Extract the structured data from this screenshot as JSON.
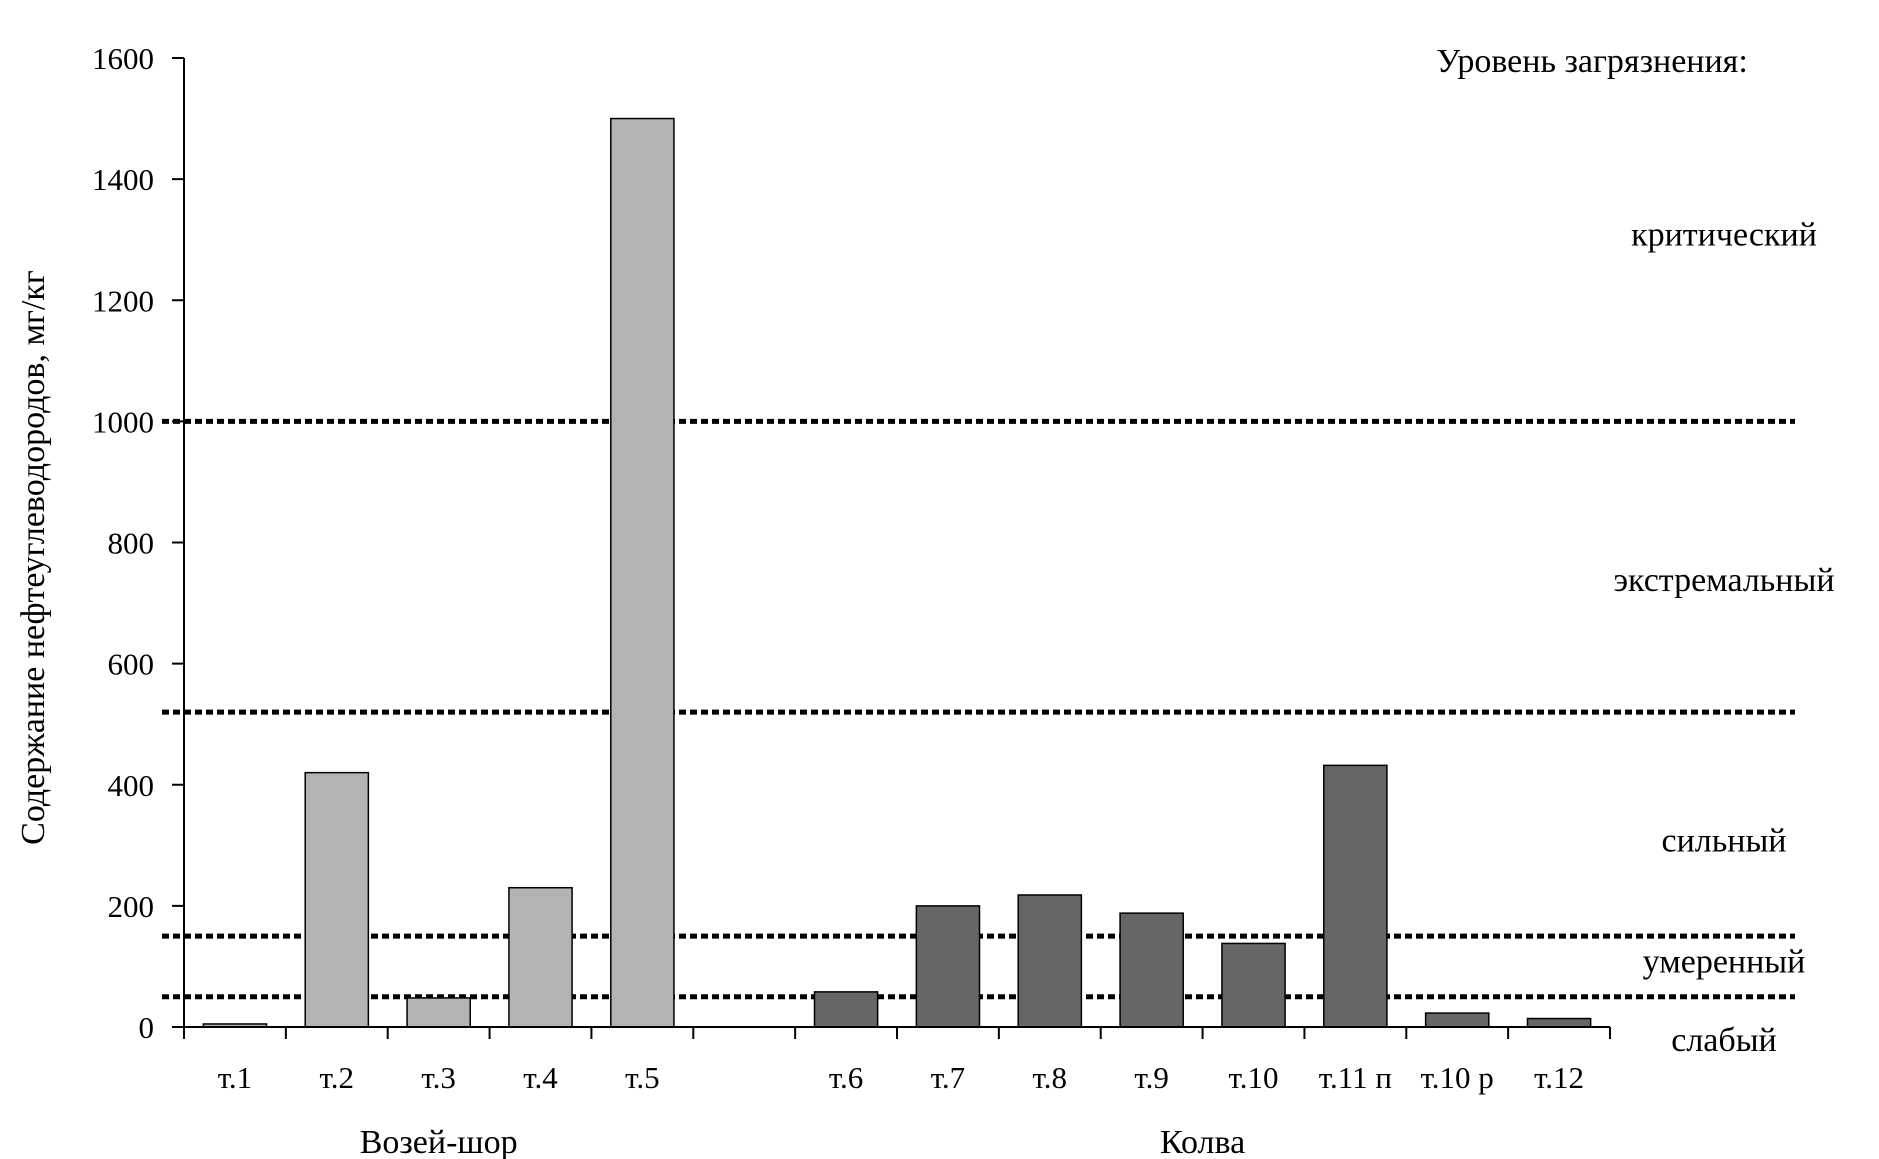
{
  "chart_data": {
    "type": "bar",
    "title": "",
    "xlabel": "",
    "ylabel": "Содержание нефтеуглеводородов, мг/кг",
    "ylim": [
      0,
      1600
    ],
    "yticks": [
      0,
      200,
      400,
      600,
      800,
      1000,
      1200,
      1400,
      1600
    ],
    "grid": false,
    "categories": [
      "т.1",
      "т.2",
      "т.3",
      "т.4",
      "т.5",
      "",
      "т.6",
      "т.7",
      "т.8",
      "т.9",
      "т.10",
      "т.11 п",
      "т.10 р",
      "т.12"
    ],
    "groups": [
      {
        "label": "Возей-шор",
        "color": "#b3b3b3",
        "points": [
          {
            "category": "т.1",
            "value": 5
          },
          {
            "category": "т.2",
            "value": 420
          },
          {
            "category": "т.3",
            "value": 48
          },
          {
            "category": "т.4",
            "value": 230
          },
          {
            "category": "т.5",
            "value": 1500
          }
        ]
      },
      {
        "label": "Колва",
        "color": "#666666",
        "points": [
          {
            "category": "т.6",
            "value": 58
          },
          {
            "category": "т.7",
            "value": 200
          },
          {
            "category": "т.8",
            "value": 218
          },
          {
            "category": "т.9",
            "value": 188
          },
          {
            "category": "т.10",
            "value": 138
          },
          {
            "category": "т.11 п",
            "value": 432
          },
          {
            "category": "т.10 р",
            "value": 23
          },
          {
            "category": "т.12",
            "value": 14
          }
        ]
      }
    ],
    "thresholds": [
      {
        "value": 50,
        "style": "dotted"
      },
      {
        "value": 150,
        "style": "dotted"
      },
      {
        "value": 520,
        "style": "dotted"
      },
      {
        "value": 1000,
        "style": "dotted"
      }
    ],
    "levels_title": "Уровень загрязнения:",
    "levels": [
      {
        "label": "слабый",
        "value": -20
      },
      {
        "label": "умеренный",
        "value": 110
      },
      {
        "label": "сильный",
        "value": 310
      },
      {
        "label": "экстремальный",
        "value": 740
      },
      {
        "label": "критический",
        "value": 1310
      }
    ]
  }
}
